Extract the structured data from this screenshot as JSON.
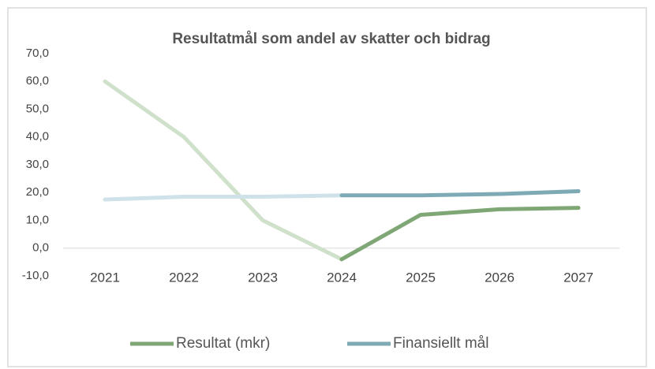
{
  "chart_data": {
    "type": "line",
    "title": "Resultatmål som andel av skatter och bidrag",
    "categories": [
      "2021",
      "2022",
      "2023",
      "2024",
      "2025",
      "2026",
      "2027"
    ],
    "highlight_from": "2024",
    "series": [
      {
        "name": "Resultat (mkr)",
        "color": "#7fa776",
        "faded_color": "#cfe0cb",
        "values": [
          60,
          40,
          10,
          -4,
          12,
          14,
          14.5
        ]
      },
      {
        "name": "Finansiellt mål",
        "color": "#7eaab6",
        "faded_color": "#cfe2ea",
        "values": [
          17.5,
          18.5,
          18.5,
          19,
          19,
          19.5,
          20.5
        ]
      }
    ],
    "ylim": [
      -10,
      70
    ],
    "yticks": [
      {
        "value": -10,
        "label": "-10,0"
      },
      {
        "value": 0,
        "label": "0,0"
      },
      {
        "value": 10,
        "label": "10,0"
      },
      {
        "value": 20,
        "label": "20,0"
      },
      {
        "value": 30,
        "label": "30,0"
      },
      {
        "value": 40,
        "label": "40,0"
      },
      {
        "value": 50,
        "label": "50,0"
      },
      {
        "value": 60,
        "label": "60,0"
      },
      {
        "value": 70,
        "label": "70,0"
      }
    ],
    "grid": false,
    "legend": "bottom"
  }
}
